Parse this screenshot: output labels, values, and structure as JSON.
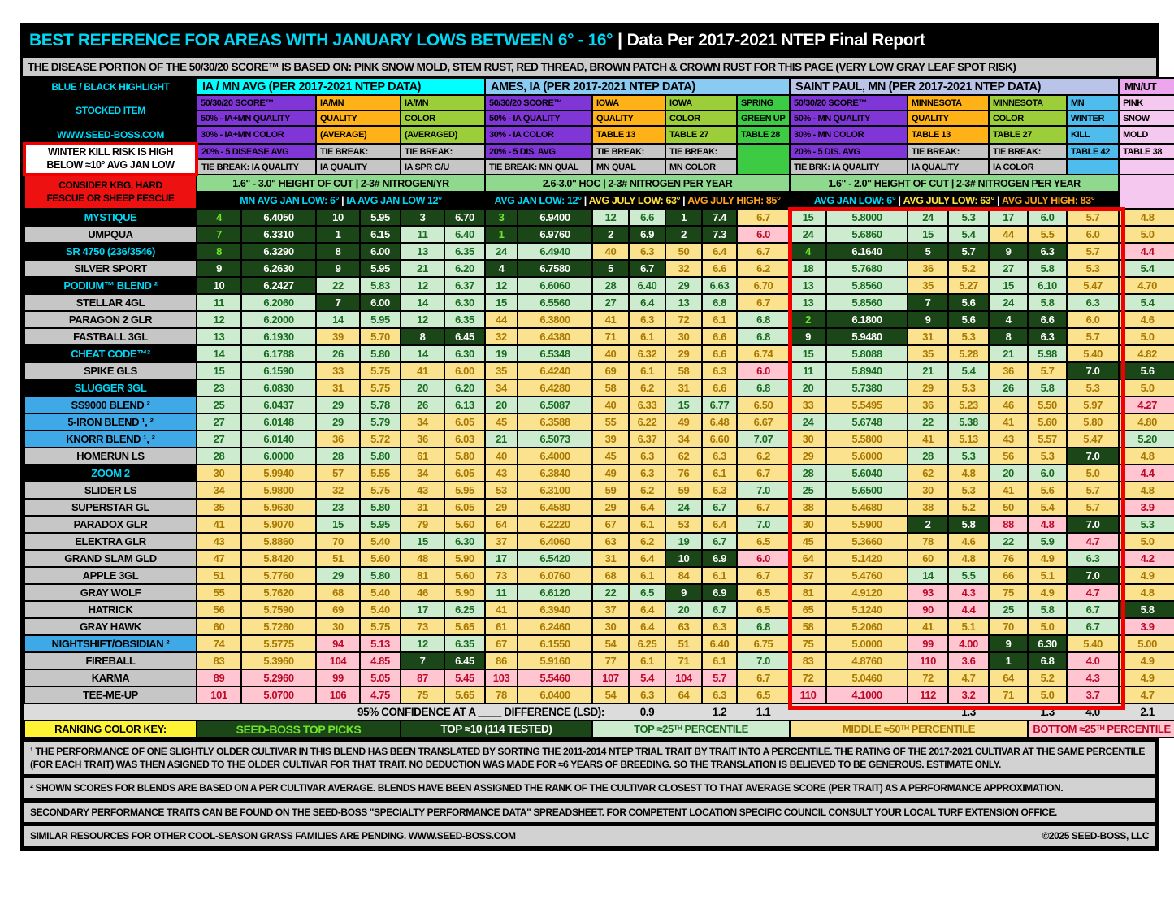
{
  "title": {
    "main": "BEST REFERENCE FOR AREAS WITH JANUARY LOWS BETWEEN 6° - 16°",
    "sep": "|",
    "right": "Data Per 2017-2021 NTEP Final Report"
  },
  "disease_note": "THE DISEASE PORTION OF THE 50/30/20 SCORE™ IS BASED ON: PINK SNOW MOLD, STEM RUST, RED THREAD, BROWN PATCH & CROWN RUST FOR THIS PAGE   (VERY LOW GRAY LEAF SPOT RISK)",
  "left_panel": {
    "highlight_label": "BLUE / BLACK HIGHLIGHT",
    "stocked_item": "STOCKED ITEM",
    "website": "WWW.SEED-BOSS.COM",
    "winter_warning_1": "WINTER KILL RISK IS HIGH",
    "winter_warning_2": "BELOW ≈10° AVG JAN LOW",
    "consider_1": "CONSIDER KBG, HARD",
    "consider_2": "FESCUE OR SHEEP FESCUE"
  },
  "groups": {
    "iamn": {
      "band": "IA / MN AVG (PER  2017-2021 NTEP DATA)",
      "col1": [
        "50/30/20 SCORE™",
        "50% - IA+MN QUALITY",
        "30% - IA+MN COLOR",
        "20% - 5 DISEASE AVG",
        "TIE BREAK: IA QUALITY"
      ],
      "col2": [
        "IA/MN",
        "QUALITY",
        "(AVERAGE)",
        "TIE BREAK:",
        "IA QUALITY"
      ],
      "col3": [
        "IA/MN",
        "COLOR",
        "(AVERAGED)",
        "TIE BREAK:",
        "IA SPR G/U"
      ],
      "hoc": "1.6\" - 3.0\" HEIGHT OF CUT  |  2-3# NITROGEN/YR",
      "climate": [
        "MN AVG JAN LOW: 6°",
        "IA AVG JAN LOW 12°"
      ]
    },
    "ames": {
      "band": "AMES, IA (PER 2017-2021 NTEP DATA)",
      "col1": [
        "50/30/20 SCORE™",
        "50% - IA QUALITY",
        "30% - IA COLOR",
        "20% - 5 DIS. AVG",
        "TIE BREAK: MN QUAL"
      ],
      "col2": [
        "IOWA",
        "QUALITY",
        "TABLE 13",
        "TIE BREAK:",
        "MN QUAL"
      ],
      "col3": [
        "IOWA",
        "COLOR",
        "TABLE 27",
        "TIE BREAK:",
        "MN COLOR"
      ],
      "col4": [
        "SPRING",
        "GREEN UP",
        "TABLE 28"
      ],
      "hoc": "2.6-3.0\" HOC | 2-3# NITROGEN PER YEAR",
      "climate": [
        "AVG JAN LOW: 12°",
        "AVG JULY LOW: 63°",
        "AVG JULY HIGH: 85°"
      ]
    },
    "stpaul": {
      "band": "SAINT PAUL, MN (PER 2017-2021 NTEP DATA)",
      "col1": [
        "50/30/20 SCORE™",
        "50% - MN QUALITY",
        "30% - MN COLOR",
        "20% - 5 DIS. AVG",
        "TIE BRK: IA QUALITY"
      ],
      "col2": [
        "MINNESOTA",
        "QUALITY",
        "TABLE 13",
        "TIE BREAK:",
        "IA QUALITY"
      ],
      "col3": [
        "MINNESOTA",
        "COLOR",
        "TABLE 27",
        "TIE BREAK:",
        "IA COLOR"
      ],
      "col4": [
        "MN",
        "WINTER",
        "KILL",
        "TABLE 42"
      ],
      "hoc": "1.6\" - 2.0\" HEIGHT OF CUT  |  2-3# NITROGEN PER YEAR",
      "climate": [
        "AVG JAN LOW: 6°",
        "AVG JULY LOW: 63°",
        "AVG JULY HIGH: 83°"
      ]
    },
    "mnut": {
      "band": "MN/UT",
      "col": [
        "PINK",
        "SNOW",
        "MOLD",
        "TABLE 38"
      ]
    }
  },
  "rows": [
    {
      "name": "MYSTIQUE",
      "style": "black",
      "cells": [
        "4|p",
        "6.4050|d",
        "10|d",
        "5.95|d",
        "3|d",
        "6.70|d",
        "3|p",
        "6.9400|d",
        "12|g",
        "6.6|g",
        "1|d",
        "7.4|d",
        "6.7|y",
        "15|g",
        "5.8000|g",
        "24|g",
        "5.3|g",
        "17|g",
        "6.0|g",
        "5.7|y",
        "4.8|y"
      ]
    },
    {
      "name": "UMPQUA",
      "style": "gray",
      "cells": [
        "7|p",
        "6.3310|d",
        "1|d",
        "6.15|d",
        "11|g",
        "6.40|g",
        "1|p",
        "6.9760|d",
        "2|d",
        "6.9|d",
        "2|d",
        "7.3|d",
        "6.0|r",
        "24|g",
        "5.6860|g",
        "15|g",
        "5.4|g",
        "44|y",
        "5.5|y",
        "6.0|y",
        "5.0|y"
      ]
    },
    {
      "name": "SR 4750 (236/3546)",
      "style": "black",
      "cells": [
        "8|p",
        "6.3290|d",
        "8|d",
        "6.00|d",
        "13|g",
        "6.35|g",
        "24|g",
        "6.4940|g",
        "40|y",
        "6.3|y",
        "50|y",
        "6.4|y",
        "6.7|y",
        "4|p",
        "6.1640|d",
        "5|d",
        "5.7|d",
        "9|d",
        "6.3|d",
        "5.7|y",
        "4.4|r"
      ]
    },
    {
      "name": "SILVER SPORT",
      "style": "gray",
      "cells": [
        "9|d",
        "6.2630|d",
        "9|d",
        "5.95|d",
        "21|g",
        "6.20|g",
        "4|d",
        "6.7580|d",
        "5|d",
        "6.7|d",
        "32|y",
        "6.6|y",
        "6.2|y",
        "18|g",
        "5.7680|g",
        "36|y",
        "5.2|y",
        "27|g",
        "5.8|g",
        "5.3|y",
        "5.4|g"
      ]
    },
    {
      "name": "PODIUM™ BLEND ²",
      "style": "black",
      "cells": [
        "10|d",
        "6.2427|d",
        "22|g",
        "5.83|g",
        "12|g",
        "6.37|g",
        "12|g",
        "6.6060|g",
        "28|g",
        "6.40|g",
        "29|g",
        "6.63|g",
        "6.70|y",
        "13|g",
        "5.8560|g",
        "35|y",
        "5.27|y",
        "15|g",
        "6.10|g",
        "5.47|y",
        "4.70|y"
      ]
    },
    {
      "name": "STELLAR 4GL",
      "style": "gray",
      "cells": [
        "11|g",
        "6.2060|g",
        "7|d",
        "6.00|d",
        "14|g",
        "6.30|g",
        "15|g",
        "6.5560|g",
        "27|g",
        "6.4|g",
        "13|g",
        "6.8|g",
        "6.7|y",
        "13|g",
        "5.8560|g",
        "7|d",
        "5.6|d",
        "24|g",
        "5.8|g",
        "6.3|g",
        "5.4|g"
      ]
    },
    {
      "name": "PARAGON 2 GLR",
      "style": "gray",
      "cells": [
        "12|g",
        "6.2000|g",
        "14|g",
        "5.95|g",
        "12|g",
        "6.35|g",
        "44|y",
        "6.3800|y",
        "41|y",
        "6.3|y",
        "72|y",
        "6.1|y",
        "6.8|g",
        "2|p",
        "6.1800|d",
        "9|d",
        "5.6|d",
        "4|d",
        "6.6|d",
        "6.0|y",
        "4.6|y"
      ]
    },
    {
      "name": "FASTBALL 3GL",
      "style": "gray",
      "cells": [
        "13|g",
        "6.1930|g",
        "39|y",
        "5.70|y",
        "8|d",
        "6.45|d",
        "32|y",
        "6.4380|y",
        "71|y",
        "6.1|y",
        "30|y",
        "6.6|y",
        "6.8|g",
        "9|d",
        "5.9480|d",
        "31|y",
        "5.3|y",
        "8|d",
        "6.3|d",
        "5.7|y",
        "5.0|y"
      ]
    },
    {
      "name": "CHEAT CODE™²",
      "style": "black",
      "cells": [
        "14|g",
        "6.1788|g",
        "26|g",
        "5.80|g",
        "14|g",
        "6.30|g",
        "19|g",
        "6.5348|g",
        "40|y",
        "6.32|y",
        "29|y",
        "6.6|y",
        "6.74|y",
        "15|g",
        "5.8088|g",
        "35|y",
        "5.28|y",
        "21|g",
        "5.98|g",
        "5.40|y",
        "4.82|y"
      ]
    },
    {
      "name": "SPIKE GLS",
      "style": "gray",
      "cells": [
        "15|g",
        "6.1590|g",
        "33|y",
        "5.75|y",
        "41|y",
        "6.00|y",
        "35|y",
        "6.4240|y",
        "69|y",
        "6.1|y",
        "58|y",
        "6.3|y",
        "6.0|r",
        "11|g",
        "5.8940|g",
        "21|g",
        "5.4|g",
        "36|y",
        "5.7|y",
        "7.0|d",
        "5.6|d"
      ]
    },
    {
      "name": "SLUGGER 3GL",
      "style": "black",
      "cells": [
        "23|g",
        "6.0830|g",
        "31|y",
        "5.75|y",
        "20|g",
        "6.20|g",
        "34|y",
        "6.4280|y",
        "58|y",
        "6.2|y",
        "31|y",
        "6.6|y",
        "6.8|g",
        "20|g",
        "5.7380|g",
        "29|y",
        "5.3|y",
        "26|g",
        "5.8|g",
        "5.3|y",
        "5.0|y"
      ]
    },
    {
      "name": "SS9000 BLEND ²",
      "style": "blue",
      "cells": [
        "25|g",
        "6.0437|g",
        "29|g",
        "5.78|g",
        "26|g",
        "6.13|g",
        "20|g",
        "6.5087|g",
        "40|y",
        "6.33|y",
        "15|g",
        "6.77|g",
        "6.50|y",
        "33|y",
        "5.5495|y",
        "36|y",
        "5.23|y",
        "46|y",
        "5.50|y",
        "5.97|y",
        "4.27|r"
      ]
    },
    {
      "name": "5-IRON BLEND ¹, ²",
      "style": "blue",
      "cells": [
        "27|g",
        "6.0148|g",
        "29|g",
        "5.79|g",
        "34|y",
        "6.05|y",
        "45|y",
        "6.3588|y",
        "55|y",
        "6.22|y",
        "49|y",
        "6.48|y",
        "6.67|y",
        "24|g",
        "5.6748|g",
        "22|g",
        "5.38|g",
        "41|y",
        "5.60|y",
        "5.80|y",
        "4.80|y"
      ]
    },
    {
      "name": "KNORR BLEND ¹, ²",
      "style": "blue",
      "cells": [
        "27|g",
        "6.0140|g",
        "36|y",
        "5.72|y",
        "36|y",
        "6.03|y",
        "21|g",
        "6.5073|g",
        "39|y",
        "6.37|y",
        "34|y",
        "6.60|y",
        "7.07|g",
        "30|y",
        "5.5800|y",
        "41|y",
        "5.13|y",
        "43|y",
        "5.57|y",
        "5.47|y",
        "5.20|g"
      ]
    },
    {
      "name": "HOMERUN LS",
      "style": "gray",
      "cells": [
        "28|g",
        "6.0000|g",
        "28|g",
        "5.80|g",
        "61|y",
        "5.80|y",
        "40|y",
        "6.4000|y",
        "45|y",
        "6.3|y",
        "62|y",
        "6.3|y",
        "6.2|y",
        "29|y",
        "5.6000|y",
        "28|g",
        "5.3|g",
        "56|y",
        "5.3|y",
        "7.0|d",
        "4.8|y"
      ]
    },
    {
      "name": "ZOOM 2",
      "style": "black",
      "cells": [
        "30|y",
        "5.9940|y",
        "57|y",
        "5.55|y",
        "34|y",
        "6.05|y",
        "43|y",
        "6.3840|y",
        "49|y",
        "6.3|y",
        "76|y",
        "6.1|y",
        "6.7|y",
        "28|g",
        "5.6040|g",
        "62|y",
        "4.8|y",
        "20|g",
        "6.0|g",
        "5.0|y",
        "4.4|r"
      ]
    },
    {
      "name": "SLIDER LS",
      "style": "gray",
      "cells": [
        "34|y",
        "5.9800|y",
        "32|y",
        "5.75|y",
        "43|y",
        "5.95|y",
        "53|y",
        "6.3100|y",
        "59|y",
        "6.2|y",
        "59|y",
        "6.3|y",
        "7.0|g",
        "25|g",
        "5.6500|g",
        "30|y",
        "5.3|y",
        "41|y",
        "5.6|y",
        "5.7|y",
        "4.8|y"
      ]
    },
    {
      "name": "SUPERSTAR GL",
      "style": "gray",
      "cells": [
        "35|y",
        "5.9630|y",
        "23|g",
        "5.80|g",
        "31|y",
        "6.05|y",
        "29|y",
        "6.4580|y",
        "29|y",
        "6.4|y",
        "24|g",
        "6.7|g",
        "6.7|y",
        "38|y",
        "5.4680|y",
        "38|y",
        "5.2|y",
        "50|y",
        "5.4|y",
        "5.7|y",
        "3.9|r"
      ]
    },
    {
      "name": "PARADOX GLR",
      "style": "gray",
      "cells": [
        "41|y",
        "5.9070|y",
        "15|g",
        "5.95|g",
        "79|y",
        "5.60|y",
        "64|y",
        "6.2220|y",
        "67|y",
        "6.1|y",
        "53|y",
        "6.4|y",
        "7.0|g",
        "30|y",
        "5.5900|y",
        "2|d",
        "5.8|d",
        "88|r",
        "4.8|r",
        "7.0|d",
        "5.3|g"
      ]
    },
    {
      "name": "ELEKTRA GLR",
      "style": "gray",
      "cells": [
        "43|y",
        "5.8860|y",
        "70|y",
        "5.40|y",
        "15|g",
        "6.30|g",
        "37|y",
        "6.4060|y",
        "63|y",
        "6.2|y",
        "19|g",
        "6.7|g",
        "6.5|y",
        "45|y",
        "5.3660|y",
        "78|y",
        "4.6|y",
        "22|g",
        "5.9|g",
        "4.7|r",
        "5.0|y"
      ]
    },
    {
      "name": "GRAND SLAM GLD",
      "style": "gray",
      "cells": [
        "47|y",
        "5.8420|y",
        "51|y",
        "5.60|y",
        "48|y",
        "5.90|y",
        "17|g",
        "6.5420|g",
        "31|y",
        "6.4|y",
        "10|d",
        "6.9|d",
        "6.0|r",
        "64|y",
        "5.1420|y",
        "60|y",
        "4.8|y",
        "76|y",
        "4.9|y",
        "6.3|g",
        "4.2|r"
      ]
    },
    {
      "name": "APPLE 3GL",
      "style": "gray",
      "cells": [
        "51|y",
        "5.7760|y",
        "29|g",
        "5.80|g",
        "81|y",
        "5.60|y",
        "73|y",
        "6.0760|y",
        "68|y",
        "6.1|y",
        "84|y",
        "6.1|y",
        "6.7|y",
        "37|y",
        "5.4760|y",
        "14|g",
        "5.5|g",
        "66|y",
        "5.1|y",
        "7.0|d",
        "4.9|y"
      ]
    },
    {
      "name": "GRAY WOLF",
      "style": "gray",
      "cells": [
        "55|y",
        "5.7620|y",
        "68|y",
        "5.40|y",
        "46|y",
        "5.90|y",
        "11|g",
        "6.6120|g",
        "22|g",
        "6.5|g",
        "9|d",
        "6.9|d",
        "6.5|y",
        "81|y",
        "4.9120|y",
        "93|r",
        "4.3|r",
        "75|y",
        "4.9|y",
        "4.7|r",
        "4.8|y"
      ]
    },
    {
      "name": "HATRICK",
      "style": "gray",
      "cells": [
        "56|y",
        "5.7590|y",
        "69|y",
        "5.40|y",
        "17|g",
        "6.25|g",
        "41|y",
        "6.3940|y",
        "37|y",
        "6.4|y",
        "20|g",
        "6.7|g",
        "6.5|y",
        "65|y",
        "5.1240|y",
        "90|r",
        "4.4|r",
        "25|g",
        "5.8|g",
        "6.7|g",
        "5.8|d"
      ]
    },
    {
      "name": "GRAY HAWK",
      "style": "gray",
      "cells": [
        "60|y",
        "5.7260|y",
        "30|y",
        "5.75|y",
        "73|y",
        "5.65|y",
        "61|y",
        "6.2460|y",
        "30|y",
        "6.4|y",
        "63|y",
        "6.3|y",
        "6.8|g",
        "58|y",
        "5.2060|y",
        "41|y",
        "5.1|y",
        "70|y",
        "5.0|y",
        "6.7|g",
        "3.9|r"
      ]
    },
    {
      "name": "NIGHTSHIFT/OBSIDIAN ²",
      "style": "blue",
      "cells": [
        "74|y",
        "5.5775|y",
        "94|r",
        "5.13|r",
        "12|g",
        "6.35|g",
        "67|y",
        "6.1550|y",
        "54|y",
        "6.25|y",
        "51|y",
        "6.40|y",
        "6.75|y",
        "75|y",
        "5.0000|y",
        "99|r",
        "4.00|r",
        "9|d",
        "6.30|d",
        "5.40|y",
        "5.00|y"
      ]
    },
    {
      "name": "FIREBALL",
      "style": "gray",
      "cells": [
        "83|y",
        "5.3960|y",
        "104|r",
        "4.85|r",
        "7|d",
        "6.45|d",
        "86|y",
        "5.9160|y",
        "77|y",
        "6.1|y",
        "71|y",
        "6.1|y",
        "7.0|g",
        "83|y",
        "4.8760|y",
        "110|r",
        "3.6|r",
        "1|d",
        "6.8|d",
        "4.0|r",
        "4.9|y"
      ]
    },
    {
      "name": "KARMA",
      "style": "gray",
      "cells": [
        "89|r",
        "5.2960|r",
        "99|r",
        "5.05|r",
        "87|r",
        "5.45|r",
        "103|r",
        "5.5460|r",
        "107|r",
        "5.4|r",
        "104|r",
        "5.7|r",
        "6.7|y",
        "72|y",
        "5.0460|y",
        "72|y",
        "4.7|y",
        "64|y",
        "5.2|y",
        "4.3|r",
        "4.9|y"
      ]
    },
    {
      "name": "TEE-ME-UP",
      "style": "gray",
      "cells": [
        "101|r",
        "5.0700|r",
        "106|r",
        "4.75|r",
        "75|y",
        "5.65|y",
        "78|y",
        "6.0400|y",
        "54|y",
        "6.3|y",
        "64|y",
        "6.3|y",
        "6.5|y",
        "110|r",
        "4.1000|r",
        "112|r",
        "3.2|r",
        "71|y",
        "5.0|y",
        "3.7|r",
        "4.7|y"
      ]
    }
  ],
  "lsd": {
    "label": "95% CONFIDENCE AT A ____ DIFFERENCE (LSD):",
    "ames_quality": "0.9",
    "ames_color": "1.2",
    "ames_greenup": "1.1",
    "sp_quality": "1.3",
    "sp_color": "1.3",
    "sp_winterkill": "4.0",
    "pink_snow": "2.1"
  },
  "key": {
    "label": "RANKING COLOR KEY:",
    "picks": "SEED-BOSS TOP PICKS",
    "top10": "TOP ≈10 (114 TESTED)",
    "top25": "TOP ≈25ᵀᴴ PERCENTILE",
    "mid50": "MIDDLE ≈50ᵀᴴ PERCENTILE",
    "bottom25": "BOTTOM ≈25ᵀᴴ PERCENTILE"
  },
  "footnotes": [
    "¹ THE PERFORMANCE OF ONE SLIGHTLY OLDER CULTIVAR IN THIS BLEND HAS BEEN TRANSLATED BY SORTING THE 2011-2014 NTEP TRIAL TRAIT BY TRAIT INTO A PERCENTILE.  THE RATING OF THE 2017-2021 CULTIVAR AT THE SAME PERCENTILE (FOR EACH TRAIT) WAS THEN ASIGNED TO THE OLDER CULTIVAR FOR THAT TRAIT.  NO DEDUCTION WAS MADE FOR ≈6 YEARS OF BREEDING.  SO THE TRANSLATION IS BELIEVED TO BE GENEROUS.  ESTIMATE ONLY.",
    "² SHOWN SCORES FOR BLENDS ARE BASED ON A PER CULTIVAR AVERAGE.  BLENDS HAVE BEEN ASSIGNED THE RANK OF THE CULTIVAR CLOSEST TO THAT AVERAGE SCORE (PER TRAIT) AS A PERFORMANCE APPROXIMATION.",
    "SECONDARY PERFORMANCE TRAITS CAN BE FOUND ON THE SEED-BOSS \"SPECIALTY PERFORMANCE DATA\" SPREADSHEET.  FOR COMPETENT LOCATION SPECIFIC COUNCIL CONSULT YOUR LOCAL TURF EXTENSION OFFICE.",
    "SIMILAR RESOURCES FOR OTHER COOL-SEASON GRASS FAMILIES ARE PENDING. WWW.SEED-BOSS.COM"
  ],
  "copyright": "©2025 SEED-BOSS, LLC",
  "colors": {
    "top_pick_text": "#71E52C",
    "top10_bg": "#1B4718",
    "top25_bg": "#CDEBCF",
    "mid50_bg": "#FAE28E",
    "bottom25_bg": "#FFC6D2",
    "stocked_black": "#000000",
    "stocked_blue": "#3FA9E8",
    "warning_red": "#F20000",
    "accent_cyan": "#00D7F5"
  }
}
